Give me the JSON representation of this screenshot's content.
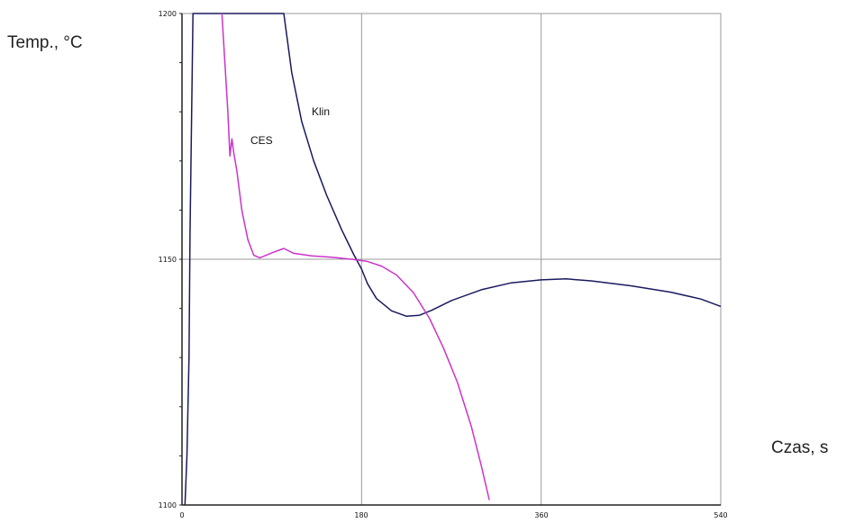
{
  "chart_data": {
    "type": "line",
    "xlabel": "Czas, s",
    "ylabel": "Temp., °C",
    "xlim": [
      0,
      540
    ],
    "ylim": [
      1100,
      1200
    ],
    "x_ticks": [
      "0",
      "180",
      "360",
      "540"
    ],
    "y_ticks": [
      "1100",
      "1150",
      "1200"
    ],
    "grid": true,
    "series": [
      {
        "name": "Klin",
        "color": "#1a1a5e",
        "points": [
          [
            3,
            1100
          ],
          [
            5,
            1110
          ],
          [
            7,
            1130
          ],
          [
            8,
            1155
          ],
          [
            10,
            1185
          ],
          [
            11,
            1200
          ],
          [
            102,
            1200
          ],
          [
            110,
            1188
          ],
          [
            120,
            1178
          ],
          [
            132,
            1170
          ],
          [
            145,
            1163
          ],
          [
            160,
            1156
          ],
          [
            172,
            1151
          ],
          [
            180,
            1148
          ],
          [
            186,
            1145
          ],
          [
            195,
            1142
          ],
          [
            210,
            1139.5
          ],
          [
            225,
            1138.4
          ],
          [
            238,
            1138.6
          ],
          [
            250,
            1139.6
          ],
          [
            270,
            1141.6
          ],
          [
            300,
            1143.8
          ],
          [
            330,
            1145.2
          ],
          [
            360,
            1145.8
          ],
          [
            385,
            1146.0
          ],
          [
            410,
            1145.6
          ],
          [
            450,
            1144.6
          ],
          [
            490,
            1143.3
          ],
          [
            520,
            1141.9
          ],
          [
            540,
            1140.4
          ]
        ]
      },
      {
        "name": "CES",
        "color": "#cc33cc",
        "points": [
          [
            40,
            1200
          ],
          [
            43,
            1190
          ],
          [
            46,
            1180
          ],
          [
            48,
            1171
          ],
          [
            50,
            1174.5
          ],
          [
            52,
            1171.5
          ],
          [
            55,
            1168
          ],
          [
            60,
            1160
          ],
          [
            66,
            1154
          ],
          [
            72,
            1150.8
          ],
          [
            78,
            1150.3
          ],
          [
            90,
            1151.3
          ],
          [
            102,
            1152.2
          ],
          [
            112,
            1151.2
          ],
          [
            130,
            1150.7
          ],
          [
            150,
            1150.4
          ],
          [
            170,
            1150.0
          ],
          [
            185,
            1149.6
          ],
          [
            200,
            1148.6
          ],
          [
            215,
            1146.8
          ],
          [
            232,
            1143.2
          ],
          [
            248,
            1138
          ],
          [
            262,
            1132
          ],
          [
            276,
            1125
          ],
          [
            290,
            1116
          ],
          [
            300,
            1108
          ],
          [
            308,
            1101
          ]
        ]
      }
    ]
  }
}
